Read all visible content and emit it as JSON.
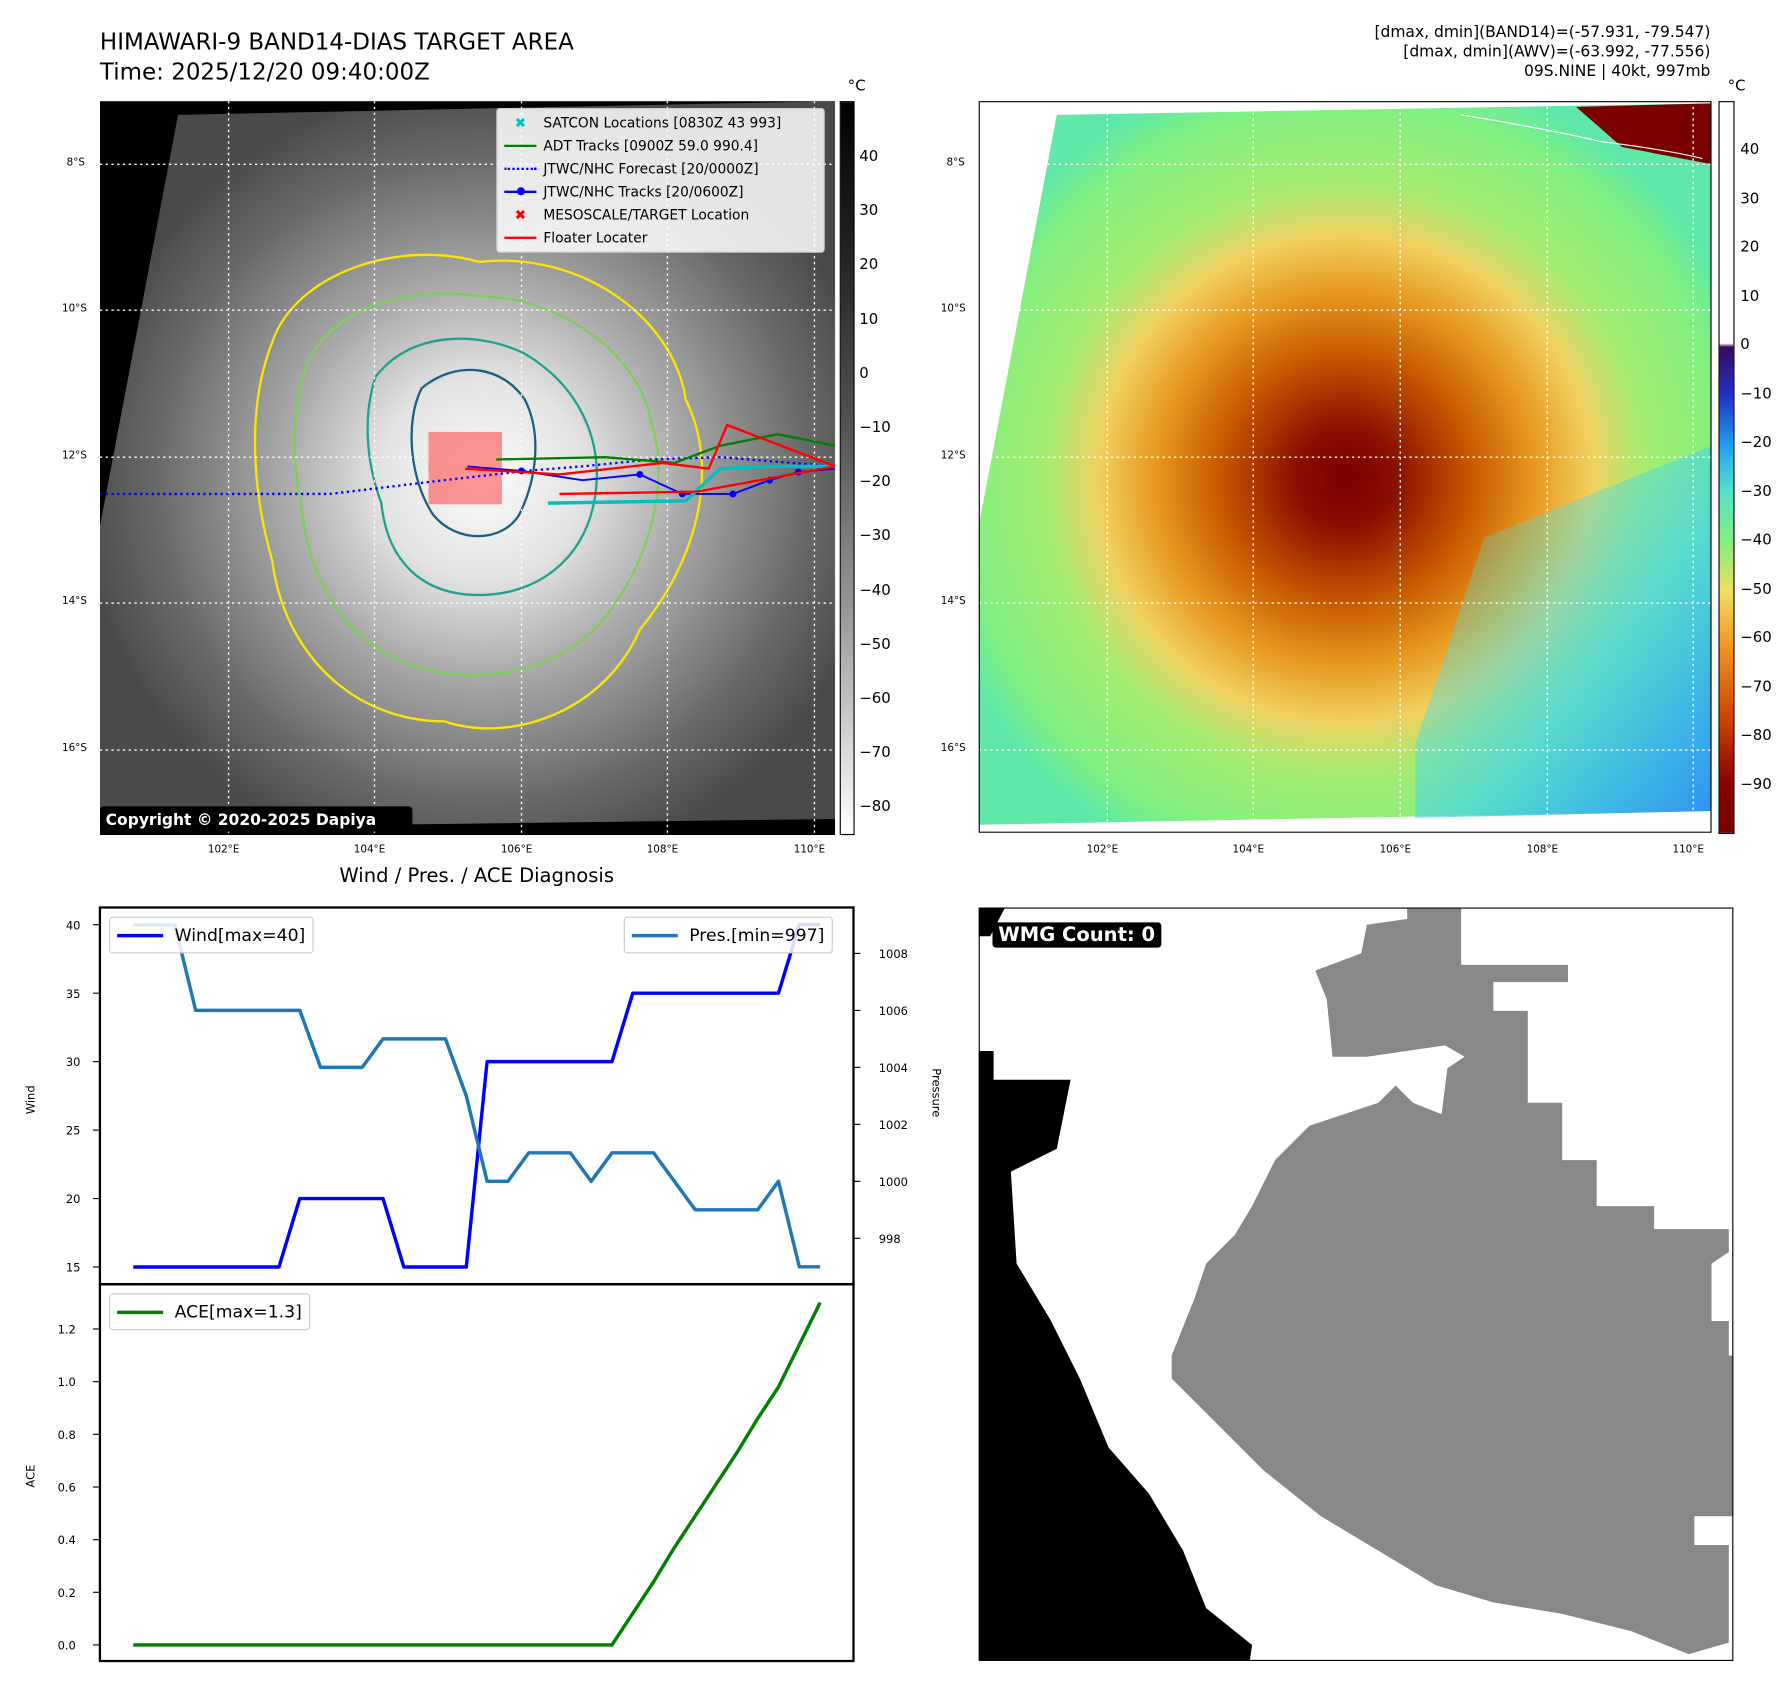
{
  "left_panel": {
    "title": "HIMAWARI-9 BAND14-DIAS TARGET AREA",
    "time": "Time: 2025/12/20 09:40:00Z",
    "colorbar_unit": "°C",
    "colorbar_ticks": [
      "40",
      "30",
      "20",
      "10",
      "0",
      "−10",
      "−20",
      "−30",
      "−40",
      "−50",
      "−60",
      "−70",
      "−80"
    ],
    "copyright": "Copyright © 2020-2025 Dapiya",
    "legend": [
      {
        "label": "SATCON Locations [0830Z 43 993]",
        "color": "#00bfbf"
      },
      {
        "label": "ADT Tracks [0900Z 59.0 990.4]",
        "color": "#008000"
      },
      {
        "label": "JTWC/NHC Forecast [20/0000Z]",
        "color": "#0000ff"
      },
      {
        "label": "JTWC/NHC Tracks [20/0600Z]",
        "color": "#0000ff"
      },
      {
        "label": "MESOSCALE/TARGET Location",
        "color": "#ff0000"
      },
      {
        "label": "Floater Locater",
        "color": "#ff0000"
      }
    ]
  },
  "right_panel": {
    "info_line1": "[dmax, dmin](BAND14)=(-57.931, -79.547)",
    "info_line2": "[dmax, dmin](AWV)=(-63.992, -77.556)",
    "info_line3": "09S.NINE | 40kt, 997mb",
    "colorbar_unit": "°C",
    "colorbar_ticks": [
      "40",
      "30",
      "20",
      "10",
      "0",
      "−10",
      "−20",
      "−30",
      "−40",
      "−50",
      "−60",
      "−70",
      "−80",
      "−90"
    ]
  },
  "map_axes": {
    "lat_ticks": [
      "8°S",
      "10°S",
      "12°S",
      "14°S",
      "16°S"
    ],
    "lon_ticks": [
      "102°E",
      "104°E",
      "106°E",
      "108°E",
      "110°E"
    ]
  },
  "wmg": {
    "label": "WMG Count: 0"
  },
  "chart_data": [
    {
      "type": "line",
      "title": "Wind / Pres. / ACE Diagnosis",
      "ylabel": "Wind",
      "y2label": "Pressure",
      "ylim": [
        14,
        41
      ],
      "y2lim": [
        997,
        1009.3
      ],
      "yticks": [
        "15",
        "20",
        "25",
        "30",
        "35",
        "40"
      ],
      "y2ticks": [
        "998",
        "1000",
        "1002",
        "1004",
        "1006",
        "1008"
      ],
      "series": [
        {
          "name": "Wind[max=40]",
          "color": "#0000ff",
          "axis": "left",
          "values": [
            15,
            15,
            15,
            15,
            15,
            15,
            15,
            15,
            20,
            20,
            20,
            20,
            20,
            15,
            15,
            15,
            15,
            30,
            30,
            30,
            30,
            30,
            30,
            30,
            35,
            35,
            35,
            35,
            35,
            35,
            35,
            35,
            40,
            40
          ]
        },
        {
          "name": "Pres.[min=997]",
          "color": "#1f77b4",
          "axis": "right",
          "values": [
            1009,
            1009,
            1009,
            1006,
            1006,
            1006,
            1006,
            1006,
            1006,
            1004,
            1004,
            1004,
            1005,
            1005,
            1005,
            1005,
            1003,
            1000,
            1000,
            1001,
            1001,
            1001,
            1000,
            1001,
            1001,
            1001,
            1000,
            999,
            999,
            999,
            999,
            1000,
            997,
            997
          ]
        }
      ]
    },
    {
      "type": "line",
      "ylabel": "ACE",
      "ylim": [
        -0.06,
        1.38
      ],
      "yticks": [
        "0.0",
        "0.2",
        "0.4",
        "0.6",
        "0.8",
        "1.0",
        "1.2"
      ],
      "series": [
        {
          "name": "ACE[max=1.3]",
          "color": "#008000",
          "values": [
            0,
            0,
            0,
            0,
            0,
            0,
            0,
            0,
            0,
            0,
            0,
            0,
            0,
            0,
            0,
            0,
            0,
            0,
            0,
            0,
            0,
            0,
            0,
            0,
            0.12,
            0.24,
            0.37,
            0.49,
            0.61,
            0.73,
            0.86,
            0.98,
            1.14,
            1.3
          ]
        }
      ]
    }
  ]
}
